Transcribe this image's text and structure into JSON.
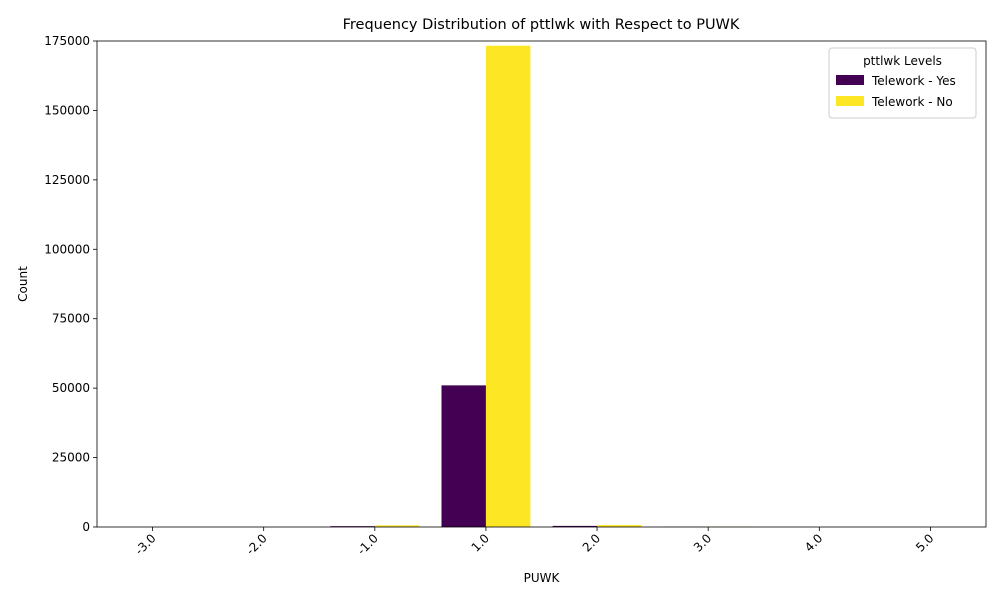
{
  "chart_data": {
    "type": "bar",
    "title": "Frequency Distribution of pttlwk with Respect to PUWK",
    "xlabel": "PUWK",
    "ylabel": "Count",
    "categories": [
      "-3.0",
      "-2.0",
      "-1.0",
      "1.0",
      "2.0",
      "3.0",
      "4.0",
      "5.0"
    ],
    "series": [
      {
        "name": "Telework - Yes",
        "color": "#440154",
        "values": [
          0,
          0,
          300,
          51000,
          400,
          50,
          0,
          0
        ]
      },
      {
        "name": "Telework - No",
        "color": "#fde725",
        "values": [
          0,
          0,
          600,
          173300,
          700,
          150,
          0,
          0
        ]
      }
    ],
    "ylim": [
      0,
      175000
    ],
    "yticks": [
      0,
      25000,
      50000,
      75000,
      100000,
      125000,
      150000,
      175000
    ],
    "xtick_rotation": 45,
    "grid": false,
    "legend": {
      "title": "pttlwk Levels",
      "placement": "top-right"
    }
  }
}
